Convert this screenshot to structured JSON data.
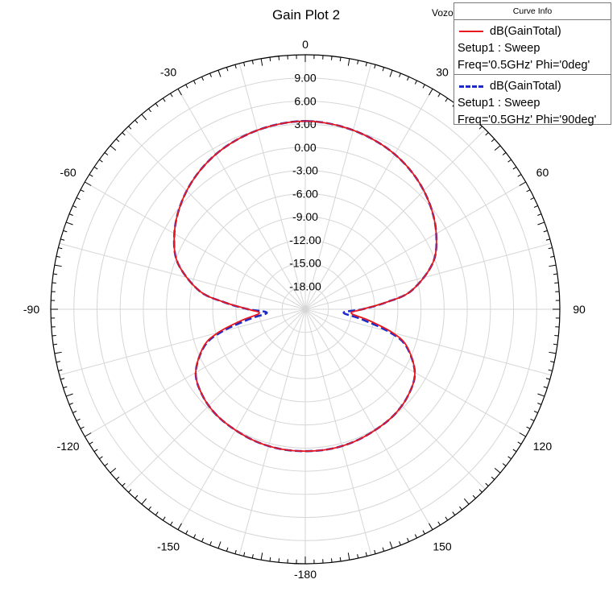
{
  "chart_data": {
    "type": "polar-line",
    "title": "Gain Plot 2",
    "corner_label": "Vozo",
    "angle_labels": [
      "0",
      "30",
      "60",
      "90",
      "120",
      "150",
      "-180",
      "-150",
      "-120",
      "-90",
      "-60",
      "-30"
    ],
    "angle_values": [
      0,
      30,
      60,
      90,
      120,
      150,
      180,
      -150,
      -120,
      -90,
      -60,
      -30
    ],
    "radial_ticks": [
      "9.00",
      "6.00",
      "3.00",
      "0.00",
      "-3.00",
      "-6.00",
      "-9.00",
      "-12.00",
      "-15.00",
      "-18.00"
    ],
    "radial_range": [
      -21,
      12
    ],
    "angle_direction": "clockwise, 0 at top",
    "grid": true,
    "legend_title": "Curve Info",
    "legend_position": "top-right",
    "series": [
      {
        "name": "dB(GainTotal)",
        "setup": "Setup1 : Sweep",
        "params": "Freq='0.5GHz' Phi='0deg'",
        "color": "#e8191e",
        "style": "solid",
        "theta": [
          0,
          10,
          20,
          30,
          40,
          50,
          60,
          70,
          80,
          85,
          90,
          95,
          100,
          105,
          110,
          120,
          130,
          140,
          150,
          160,
          170,
          180
        ],
        "values": [
          3.4,
          3.2,
          2.8,
          2.2,
          1.3,
          0.1,
          -1.4,
          -3.4,
          -7.0,
          -10.4,
          -13.6,
          -15.0,
          -12.6,
          -9.3,
          -7.0,
          -4.6,
          -3.6,
          -3.1,
          -2.9,
          -2.7,
          -2.6,
          -2.6
        ]
      },
      {
        "name": "dB(GainTotal)",
        "setup": "Setup1 : Sweep",
        "params": "Freq='0.5GHz' Phi='90deg'",
        "color": "#1f2bc9",
        "style": "dashed",
        "theta": [
          0,
          10,
          20,
          30,
          40,
          50,
          60,
          70,
          80,
          85,
          90,
          95,
          100,
          105,
          110,
          120,
          130,
          140,
          150,
          160,
          170,
          180
        ],
        "values": [
          3.4,
          3.2,
          2.8,
          2.2,
          1.3,
          0.1,
          -1.4,
          -3.4,
          -7.0,
          -10.4,
          -13.6,
          -16.0,
          -13.6,
          -9.8,
          -7.1,
          -4.6,
          -3.6,
          -3.1,
          -2.9,
          -2.7,
          -2.6,
          -2.6
        ]
      }
    ]
  }
}
